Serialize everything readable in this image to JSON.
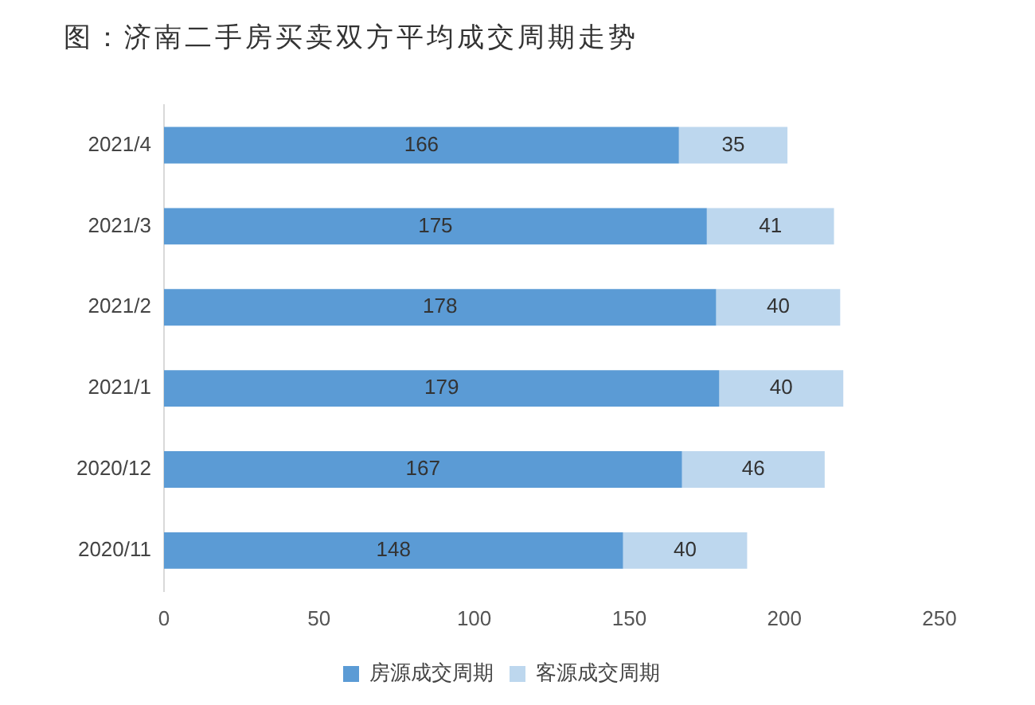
{
  "chart_data": {
    "type": "bar",
    "orientation": "horizontal",
    "stacked": true,
    "title": "图：济南二手房买卖双方平均成交周期走势",
    "categories": [
      "2021/4",
      "2021/3",
      "2021/2",
      "2021/1",
      "2020/12",
      "2020/11"
    ],
    "series": [
      {
        "name": "房源成交周期",
        "color": "#5b9bd5",
        "values": [
          166,
          175,
          178,
          179,
          167,
          148
        ]
      },
      {
        "name": "客源成交周期",
        "color": "#bdd7ee",
        "values": [
          35,
          41,
          40,
          40,
          46,
          40
        ]
      }
    ],
    "xlim": [
      0,
      250
    ],
    "xticks": [
      0,
      50,
      100,
      150,
      200,
      250
    ],
    "grid": false,
    "legend": "bottom",
    "data_labels": true
  }
}
